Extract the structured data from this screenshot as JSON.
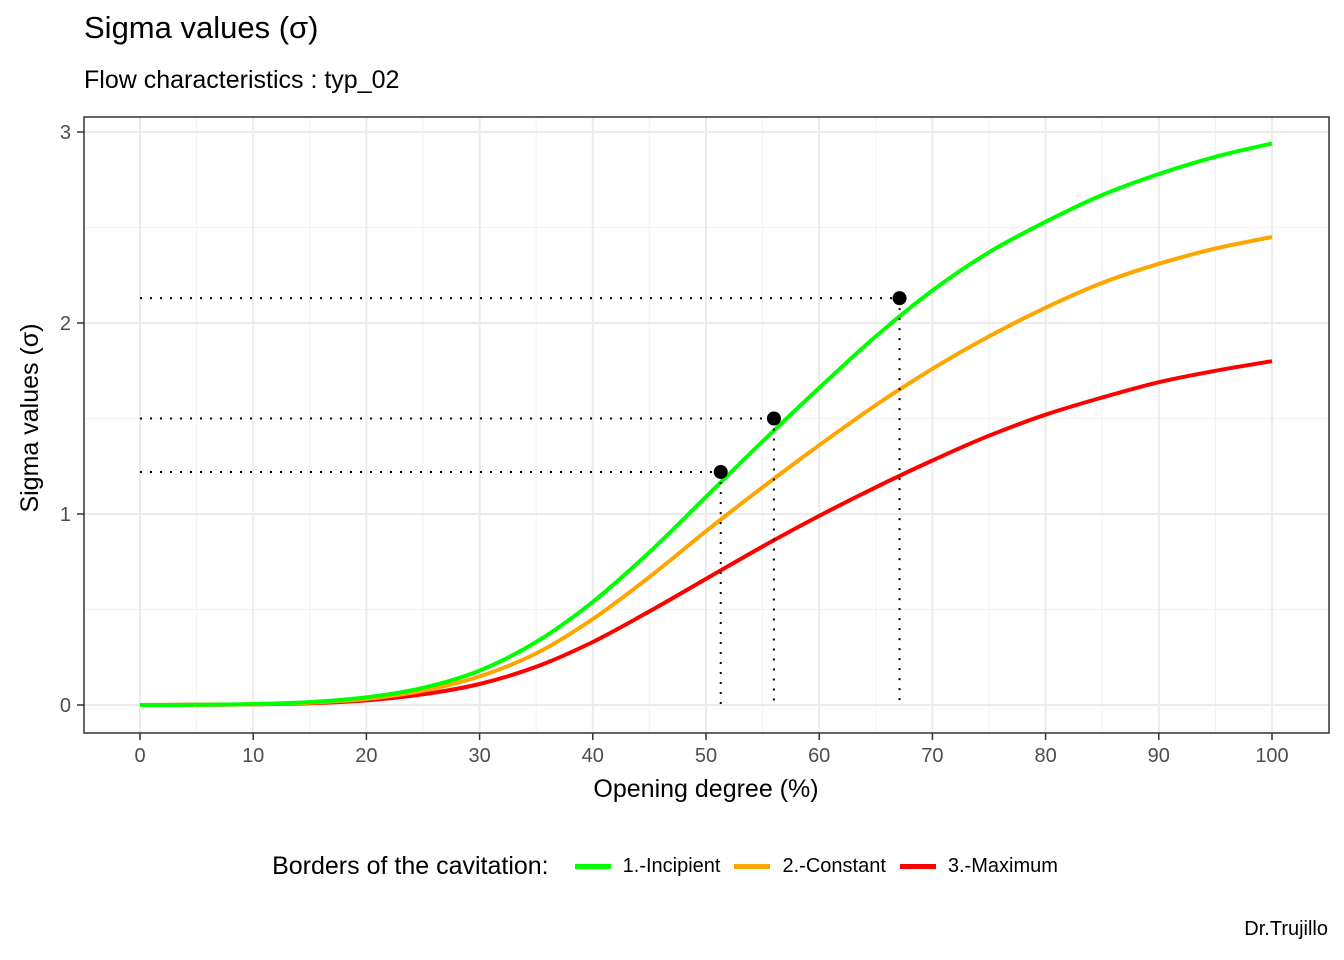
{
  "chart_data": {
    "type": "line",
    "title": "Sigma values (σ)",
    "subtitle": "Flow characteristics : typ_02",
    "xlabel": "Opening degree (%)",
    "ylabel": "Sigma values (σ)",
    "xlim": [
      0,
      100
    ],
    "ylim": [
      0,
      3
    ],
    "xticks": [
      "0",
      "10",
      "20",
      "30",
      "40",
      "50",
      "60",
      "70",
      "80",
      "90",
      "100"
    ],
    "yticks": [
      "0",
      "1",
      "2",
      "3"
    ],
    "grid": true,
    "legend": {
      "title": "Borders of the cavitation:",
      "placement": "bottom"
    },
    "caption": "Dr.Trujillo",
    "x": [
      0,
      5,
      10,
      15,
      20,
      25,
      30,
      35,
      40,
      45,
      50,
      55,
      60,
      65,
      70,
      75,
      80,
      85,
      90,
      95,
      100
    ],
    "series": [
      {
        "name": "1.-Incipient",
        "color": "#00FF00",
        "values": [
          0,
          0.001,
          0.005,
          0.015,
          0.04,
          0.09,
          0.18,
          0.33,
          0.54,
          0.8,
          1.09,
          1.38,
          1.66,
          1.93,
          2.17,
          2.37,
          2.53,
          2.67,
          2.78,
          2.87,
          2.94
        ]
      },
      {
        "name": "2.-Constant",
        "color": "#FFA500",
        "values": [
          0,
          0.001,
          0.004,
          0.012,
          0.032,
          0.075,
          0.15,
          0.27,
          0.45,
          0.67,
          0.91,
          1.14,
          1.36,
          1.57,
          1.76,
          1.93,
          2.08,
          2.21,
          2.31,
          2.39,
          2.45
        ]
      },
      {
        "name": "3.-Maximum",
        "color": "#FF0000",
        "values": [
          0,
          0.001,
          0.003,
          0.009,
          0.024,
          0.056,
          0.11,
          0.2,
          0.33,
          0.49,
          0.66,
          0.83,
          0.99,
          1.14,
          1.28,
          1.41,
          1.52,
          1.61,
          1.69,
          1.75,
          1.8
        ]
      }
    ],
    "points": [
      {
        "x": 51.3,
        "y": 1.22
      },
      {
        "x": 56.0,
        "y": 1.5
      },
      {
        "x": 67.1,
        "y": 2.13
      }
    ]
  }
}
